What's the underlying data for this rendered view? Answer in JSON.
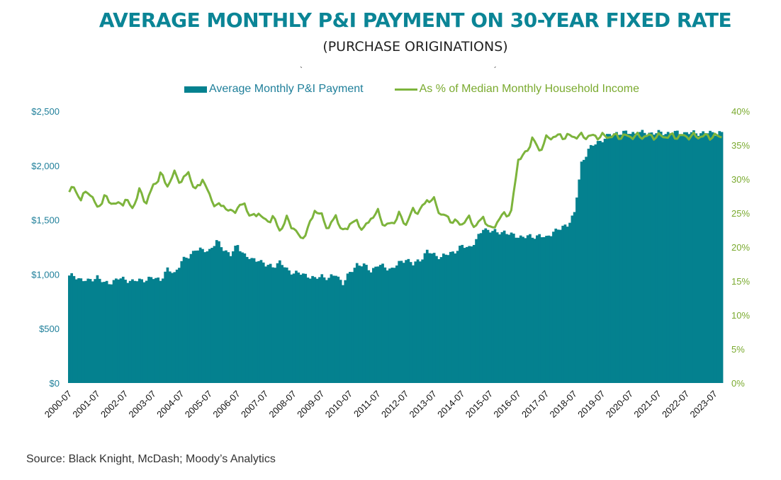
{
  "title": "AVERAGE MONTHLY P&I PAYMENT ON 30-YEAR FIXED RATE",
  "subtitle": "(PURCHASE ORIGINATIONS)",
  "stray_marks": [
    "`",
    "´"
  ],
  "source": "Source: Black Knight, McDash; Moody’s Analytics",
  "colors": {
    "title": "#0b8596",
    "bar": "#04818f",
    "line": "#7db43c",
    "left_axis": "#1f7f9a",
    "right_axis": "#7aaa2f"
  },
  "chart_data": {
    "type": "bar+line",
    "legend": [
      "Average Monthly P&I Payment",
      "As % of Median Monthly Household Income"
    ],
    "left_axis": {
      "ticks": [
        "$0",
        "$500",
        "$1,000",
        "$1,500",
        "$2,000",
        "$2,500"
      ],
      "min": 0,
      "max": 2500
    },
    "right_axis": {
      "ticks": [
        "0%",
        "5%",
        "10%",
        "15%",
        "20%",
        "25%",
        "30%",
        "35%",
        "40%"
      ],
      "min": 0,
      "max": 40
    },
    "x_labels": [
      "2000-07",
      "2001-07",
      "2002-07",
      "2003-07",
      "2004-07",
      "2005-07",
      "2006-07",
      "2007-07",
      "2008-07",
      "2009-07",
      "2010-07",
      "2011-07",
      "2012-07",
      "2013-07",
      "2014-07",
      "2015-07",
      "2016-07",
      "2017-07",
      "2018-07",
      "2019-07",
      "2020-07",
      "2021-07",
      "2022-07",
      "2023-07"
    ],
    "keypoints_x": [
      0,
      2,
      5,
      8,
      12,
      15,
      18,
      21,
      24,
      27,
      30,
      33,
      36,
      39,
      42,
      45,
      48,
      51,
      54,
      57,
      60,
      63,
      66,
      69,
      72,
      75,
      78,
      81,
      84,
      87,
      90,
      93,
      96,
      99,
      102,
      105,
      108,
      111,
      114,
      117,
      120,
      123,
      126,
      129,
      132,
      135,
      138,
      141,
      144,
      147,
      150,
      153,
      156,
      159,
      162,
      165,
      168,
      171,
      174,
      177,
      180,
      183,
      186,
      189,
      192,
      195,
      198,
      201,
      204,
      207,
      210,
      213,
      216,
      219,
      222,
      225,
      228,
      231,
      234,
      237,
      240,
      243,
      246,
      249,
      252,
      255,
      258,
      261,
      264,
      267,
      270,
      273,
      276,
      279
    ],
    "payment_keypoints": [
      980,
      985,
      955,
      935,
      980,
      915,
      930,
      960,
      955,
      935,
      945,
      955,
      965,
      955,
      1040,
      1010,
      1120,
      1160,
      1235,
      1215,
      1225,
      1300,
      1235,
      1180,
      1265,
      1180,
      1130,
      1140,
      1080,
      1075,
      1110,
      1045,
      1015,
      1005,
      990,
      955,
      990,
      960,
      1000,
      920,
      1010,
      1095,
      1080,
      1035,
      1085,
      1065,
      1050,
      1100,
      1145,
      1090,
      1135,
      1210,
      1180,
      1160,
      1185,
      1215,
      1255,
      1250,
      1310,
      1420,
      1405,
      1380,
      1395,
      1360,
      1350,
      1345,
      1345,
      1360,
      1330,
      1400,
      1415,
      1460,
      1560,
      2020,
      2150,
      2200,
      2240,
      2280,
      2300,
      2300,
      2300,
      2300,
      2300,
      2300,
      2300,
      2300,
      2300,
      2300,
      2300,
      2300,
      2300,
      2300,
      2300,
      2300
    ],
    "pct_keypoints": [
      28.0,
      28.8,
      27.0,
      28.4,
      25.8,
      27.3,
      26.6,
      26.2,
      26.9,
      25.8,
      28.2,
      26.6,
      29.0,
      30.7,
      29.1,
      30.8,
      29.6,
      31.0,
      28.2,
      30.1,
      27.5,
      26.0,
      26.2,
      25.0,
      25.8,
      26.3,
      24.3,
      25.1,
      23.7,
      24.4,
      22.5,
      24.1,
      22.8,
      21.2,
      22.5,
      25.5,
      24.5,
      22.7,
      24.7,
      22.1,
      23.5,
      23.7,
      22.6,
      24.3,
      25.1,
      23.1,
      23.5,
      24.7,
      23.4,
      25.4,
      25.3,
      27.0,
      26.8,
      24.8,
      24.3,
      23.6,
      23.5,
      24.2,
      23.0,
      24.5,
      22.5,
      23.7,
      24.9,
      25.0,
      33.0,
      33.6,
      36.0,
      34.2,
      35.9,
      36.3,
      36.3,
      36.3,
      36.3,
      36.3,
      36.3,
      36.3,
      36.3,
      36.3,
      36.3,
      36.3,
      36.3,
      36.3,
      36.3,
      36.3,
      36.3,
      36.3,
      36.3,
      36.3,
      36.3,
      36.3,
      36.3,
      36.3,
      36.3,
      36.3
    ]
  }
}
